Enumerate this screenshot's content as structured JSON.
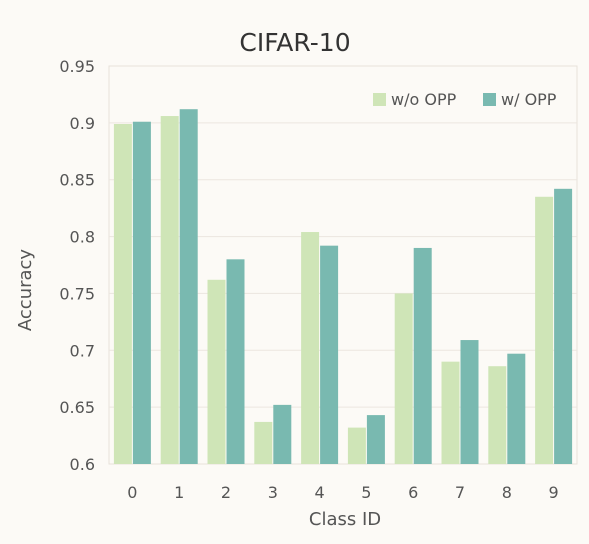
{
  "chart_data": {
    "type": "bar",
    "title": "CIFAR-10",
    "xlabel": "Class ID",
    "ylabel": "Accuracy",
    "categories": [
      "0",
      "1",
      "2",
      "3",
      "4",
      "5",
      "6",
      "7",
      "8",
      "9"
    ],
    "yticks": [
      "0.6",
      "0.65",
      "0.7",
      "0.75",
      "0.8",
      "0.85",
      "0.9",
      "0.95"
    ],
    "ylim": [
      0.6,
      0.95
    ],
    "grid": true,
    "legend_position": "top-right",
    "series": [
      {
        "name": "w/o OPP",
        "color": "#cfe5b7",
        "values": [
          0.899,
          0.906,
          0.762,
          0.637,
          0.804,
          0.632,
          0.75,
          0.69,
          0.686,
          0.835
        ]
      },
      {
        "name": "w/ OPP",
        "color": "#79b9b0",
        "values": [
          0.901,
          0.912,
          0.78,
          0.652,
          0.792,
          0.643,
          0.79,
          0.709,
          0.697,
          0.842
        ]
      }
    ]
  }
}
